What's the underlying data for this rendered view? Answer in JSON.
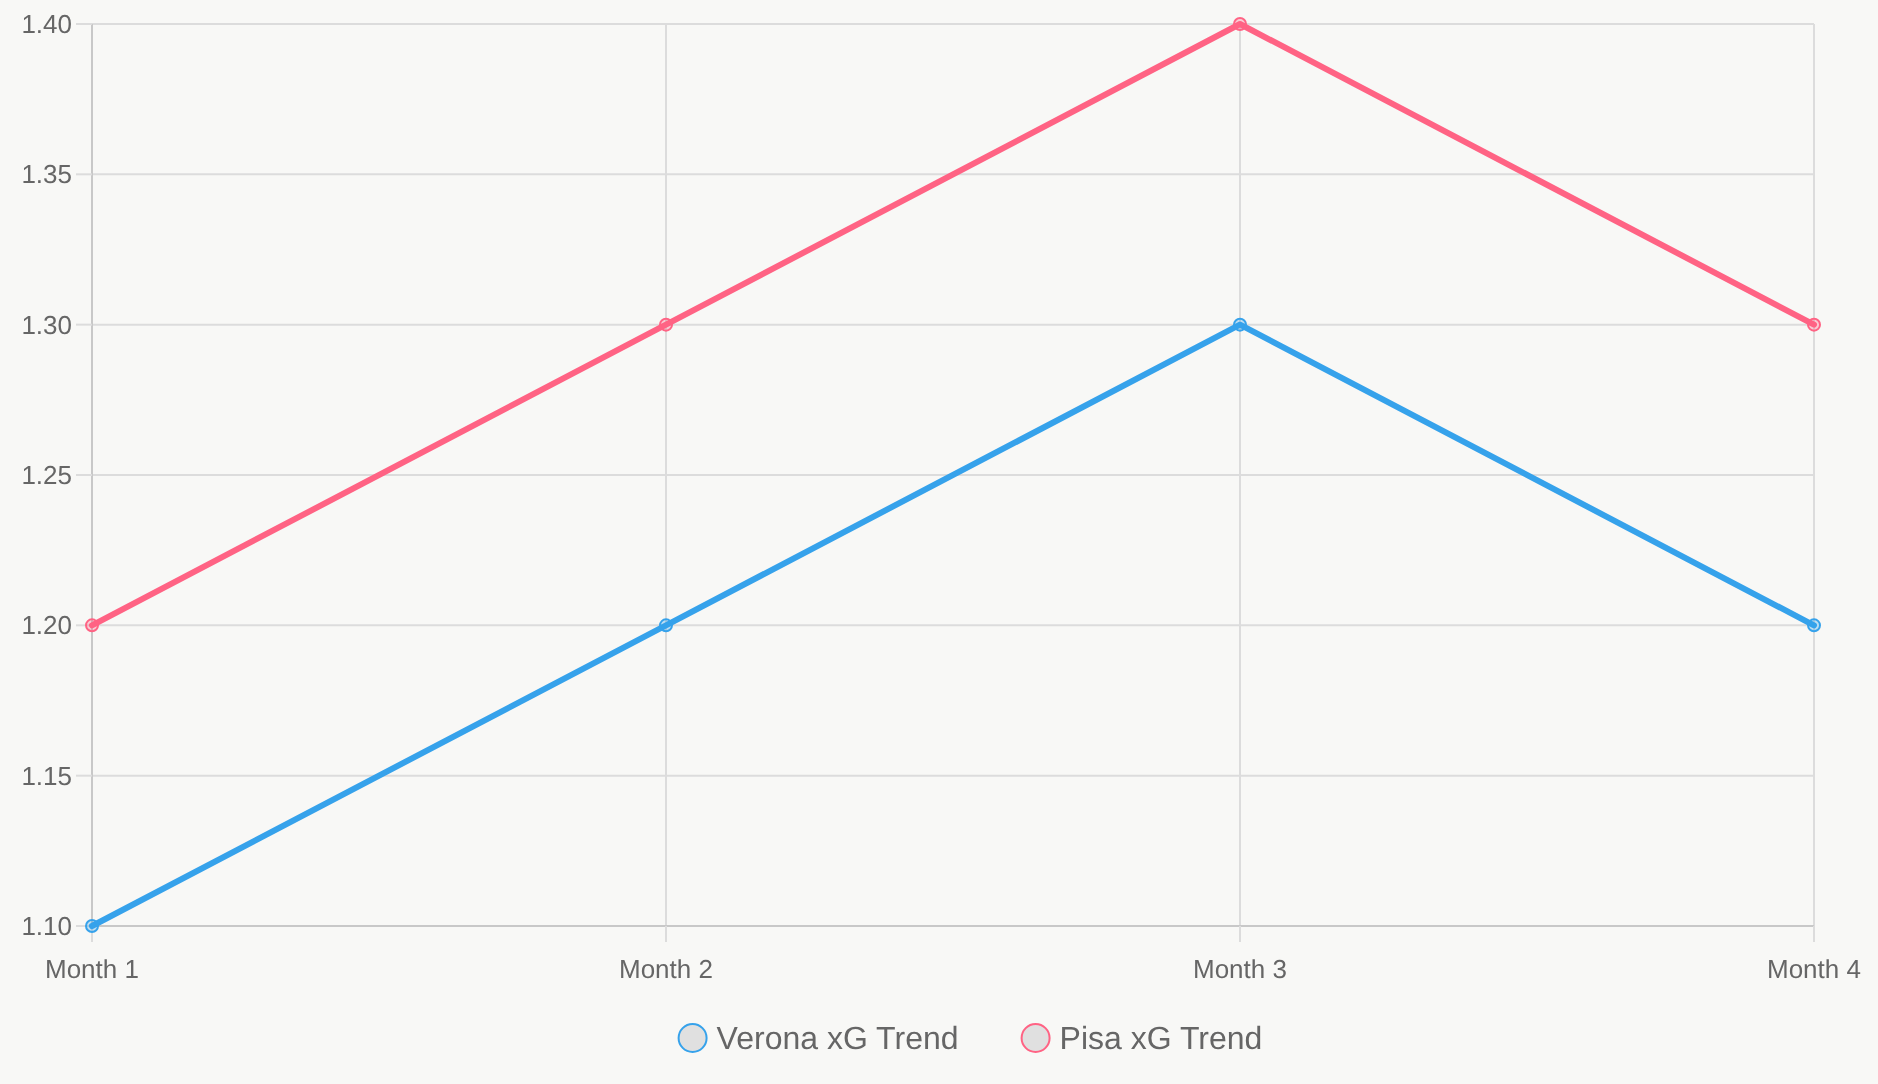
{
  "chart_data": {
    "type": "line",
    "categories": [
      "Month 1",
      "Month 2",
      "Month 3",
      "Month 4"
    ],
    "series": [
      {
        "name": "Verona xG Trend",
        "color": "#36a2eb",
        "values": [
          1.1,
          1.2,
          1.3,
          1.2
        ]
      },
      {
        "name": "Pisa xG Trend",
        "color": "#ff6384",
        "values": [
          1.2,
          1.3,
          1.4,
          1.3
        ]
      }
    ],
    "ylim": [
      1.1,
      1.4
    ],
    "yticks": [
      {
        "value": 1.1,
        "label": "1.10"
      },
      {
        "value": 1.15,
        "label": "1.15"
      },
      {
        "value": 1.2,
        "label": "1.20"
      },
      {
        "value": 1.25,
        "label": "1.25"
      },
      {
        "value": 1.3,
        "label": "1.30"
      },
      {
        "value": 1.35,
        "label": "1.35"
      },
      {
        "value": 1.4,
        "label": "1.40"
      }
    ],
    "grid": true,
    "legend": "bottom",
    "marker": "circle",
    "line_style": "solid"
  }
}
